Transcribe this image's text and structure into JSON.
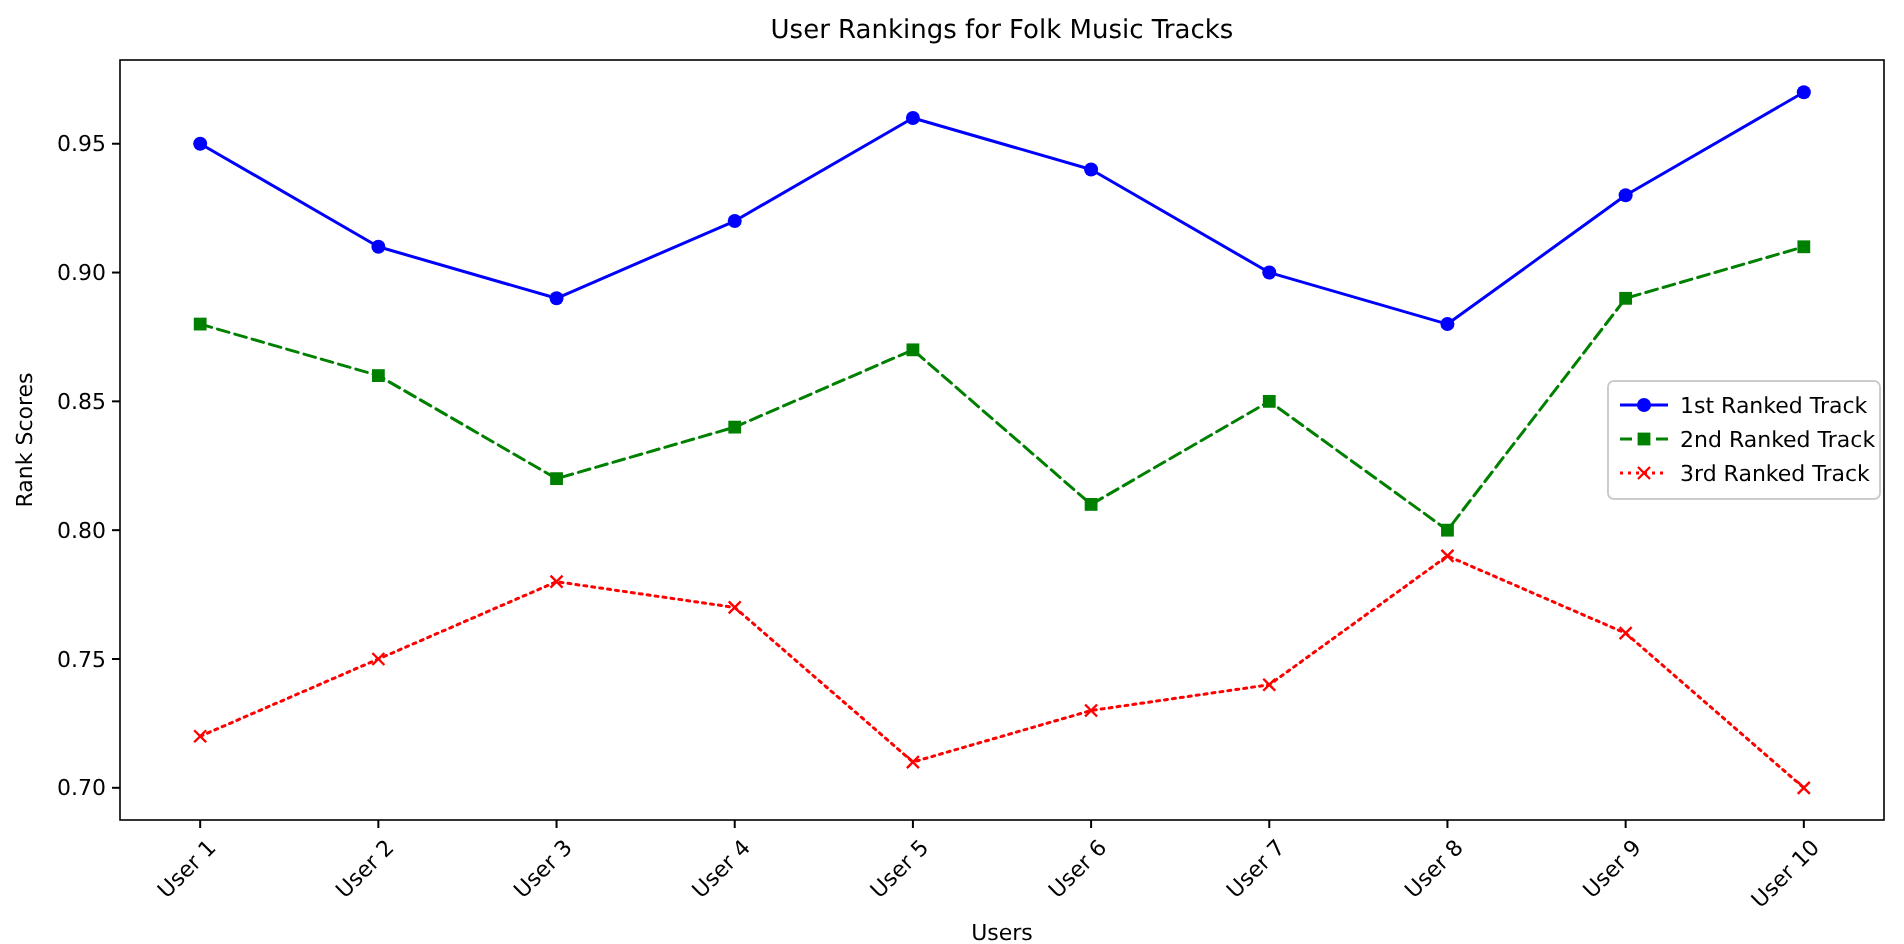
{
  "chart_data": {
    "type": "line",
    "title": "User Rankings for Folk Music Tracks",
    "xlabel": "Users",
    "ylabel": "Rank Scores",
    "categories": [
      "User 1",
      "User 2",
      "User 3",
      "User 4",
      "User 5",
      "User 6",
      "User 7",
      "User 8",
      "User 9",
      "User 10"
    ],
    "series": [
      {
        "name": "1st Ranked Track",
        "color": "#0000ff",
        "marker": "circle",
        "line_style": "solid",
        "values": [
          0.95,
          0.91,
          0.89,
          0.92,
          0.96,
          0.94,
          0.9,
          0.88,
          0.93,
          0.97
        ]
      },
      {
        "name": "2nd Ranked Track",
        "color": "#008000",
        "marker": "square",
        "line_style": "dashed",
        "values": [
          0.88,
          0.86,
          0.82,
          0.84,
          0.87,
          0.81,
          0.85,
          0.8,
          0.89,
          0.91
        ]
      },
      {
        "name": "3rd Ranked Track",
        "color": "#ff0000",
        "marker": "cross",
        "line_style": "dotted",
        "values": [
          0.72,
          0.75,
          0.78,
          0.77,
          0.71,
          0.73,
          0.74,
          0.79,
          0.76,
          0.7
        ]
      }
    ],
    "ylim": [
      0.6875,
      0.9825
    ],
    "yticks": [
      {
        "value": 0.7,
        "label": "0.70"
      },
      {
        "value": 0.75,
        "label": "0.75"
      },
      {
        "value": 0.8,
        "label": "0.80"
      },
      {
        "value": 0.85,
        "label": "0.85"
      },
      {
        "value": 0.9,
        "label": "0.90"
      },
      {
        "value": 0.95,
        "label": "0.95"
      }
    ],
    "grid": false,
    "legend": "right"
  }
}
